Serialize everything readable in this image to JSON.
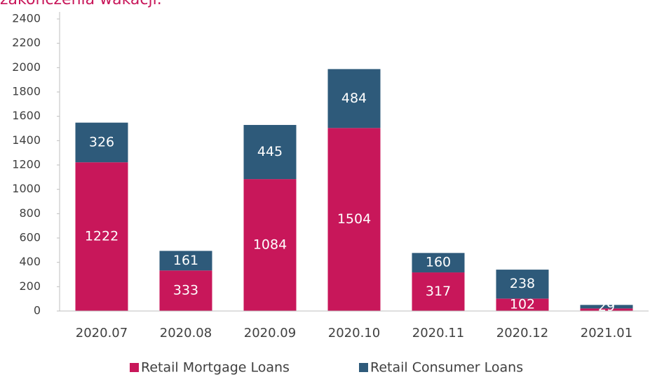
{
  "chart_data": {
    "type": "stacked_bar",
    "title": "zakończenia wakacji.",
    "categories": [
      "2020.07",
      "2020.08",
      "2020.09",
      "2020.10",
      "2020.11",
      "2020.12",
      "2021.01"
    ],
    "series": [
      {
        "name": "Retail Mortgage Loans",
        "color": "#c8175a",
        "values": [
          1222,
          333,
          1084,
          1504,
          317,
          102,
          21
        ],
        "value_labels": [
          "1222",
          "333",
          "1084",
          "1504",
          "317",
          "102",
          null
        ]
      },
      {
        "name": "Retail Consumer Loans",
        "color": "#2e5a7a",
        "values": [
          326,
          161,
          445,
          484,
          160,
          238,
          29
        ]
      }
    ],
    "ylim": [
      0,
      2400
    ],
    "yticks": [
      0,
      200,
      400,
      600,
      800,
      1000,
      1200,
      1400,
      1600,
      1800,
      2000,
      2200,
      2400
    ],
    "legend": "bottom"
  }
}
